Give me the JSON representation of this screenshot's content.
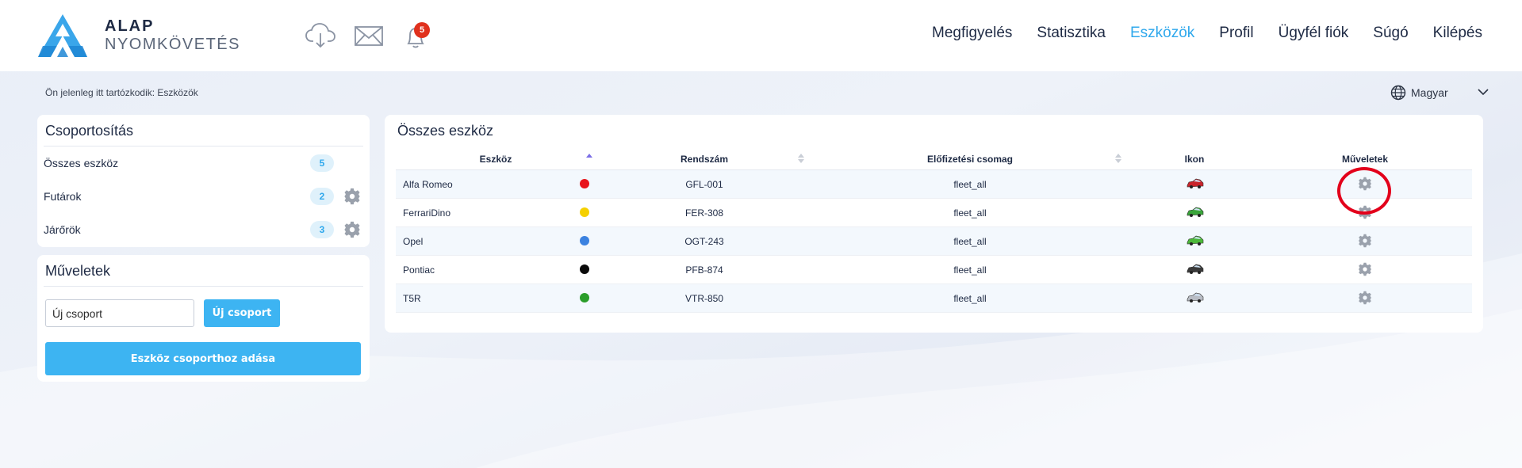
{
  "brand": {
    "line1": "ALAP",
    "line2": "NYOMKÖVETÉS"
  },
  "header_icons": {
    "cloud": "cloud-download-icon",
    "mail": "envelope-icon",
    "bell": "bell-icon",
    "notification_count": "5"
  },
  "nav": [
    {
      "label": "Megfigyelés"
    },
    {
      "label": "Statisztika"
    },
    {
      "label": "Eszközök",
      "active": true
    },
    {
      "label": "Profil"
    },
    {
      "label": "Ügyfél fiók"
    },
    {
      "label": "Súgó"
    },
    {
      "label": "Kilépés"
    }
  ],
  "breadcrumb": "Ön jelenleg itt tartózkodik: Eszközök",
  "language": {
    "label": "Magyar",
    "icon": "globe-icon"
  },
  "grouping": {
    "title": "Csoportosítás",
    "groups": [
      {
        "label": "Összes eszköz",
        "count": "5"
      },
      {
        "label": "Futárok",
        "count": "2"
      },
      {
        "label": "Járőrök",
        "count": "3"
      }
    ]
  },
  "operations": {
    "title": "Műveletek",
    "new_group_value": "Új csoport",
    "new_group_button": "Új csoport",
    "add_button": "Eszköz csoporthoz adása"
  },
  "devices": {
    "title": "Összes eszköz",
    "columns": [
      "Eszköz",
      "Rendszám",
      "Előfizetési csomag",
      "Ikon",
      "Műveletek"
    ],
    "rows": [
      {
        "name": "Alfa Romeo",
        "color": "#e8141b",
        "plate": "GFL-001",
        "plan": "fleet_all",
        "car_color": "#c9252c"
      },
      {
        "name": "FerrariDino",
        "color": "#f5d000",
        "plate": "FER-308",
        "plan": "fleet_all",
        "car_color": "#3aa53a"
      },
      {
        "name": "Opel",
        "color": "#3b82e0",
        "plate": "OGT-243",
        "plan": "fleet_all",
        "car_color": "#4cb83a"
      },
      {
        "name": "Pontiac",
        "color": "#0a0a0a",
        "plate": "PFB-874",
        "plan": "fleet_all",
        "car_color": "#3a3a3a"
      },
      {
        "name": "T5R",
        "color": "#2a9d2a",
        "plate": "VTR-850",
        "plan": "fleet_all",
        "car_color": "#b8bcc4"
      }
    ]
  }
}
